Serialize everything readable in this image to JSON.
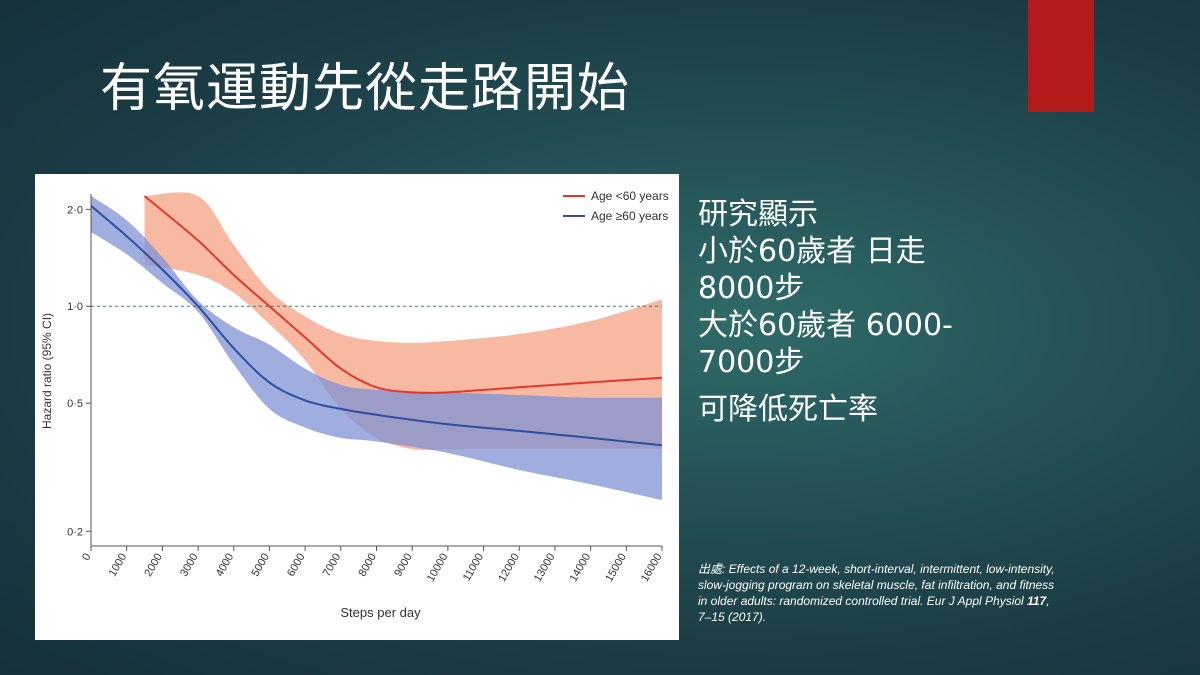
{
  "slide": {
    "title": "有氧運動先從走路開始",
    "accent_color": "#b31b1b"
  },
  "findings": {
    "lines": [
      "研究顯示",
      "小於60歲者 日走",
      "8000步",
      "大於60歲者 6000-",
      "7000步"
    ],
    "conclusion": "可降低死亡率"
  },
  "citation": {
    "prefix": "出處:",
    "text_before": " Effects of a 12-week, short-interval, intermittent, low-intensity, slow-jogging program on skeletal muscle, fat infiltration, and fitness in older adults: randomized controlled trial. Eur J Appl Physiol ",
    "volume": "117",
    "text_after": ", 7–15 (2017)."
  },
  "chart_data": {
    "type": "line",
    "xlabel": "Steps per day",
    "ylabel": "Hazard ratio (95% CI)",
    "y_scale": "log",
    "xlim": [
      0,
      16000
    ],
    "ylim": [
      0.18,
      2.2
    ],
    "x_ticks": [
      0,
      1000,
      2000,
      3000,
      4000,
      5000,
      6000,
      7000,
      8000,
      9000,
      10000,
      11000,
      12000,
      13000,
      14000,
      15000,
      16000
    ],
    "x_tick_labels": [
      "0",
      "1000",
      "2000",
      "3000",
      "4000",
      "5000",
      "6000",
      "7000",
      "8000",
      "9000",
      "10000",
      "11000",
      "12000",
      "13000",
      "14000",
      "15000",
      "16000"
    ],
    "y_ticks": [
      0.2,
      0.5,
      1.0,
      2.0
    ],
    "y_tick_labels": [
      "0·2",
      "0·5",
      "1·0",
      "2·0"
    ],
    "reference_line": 1.0,
    "legend_position": "top-right",
    "series": [
      {
        "name": "Age <60 years",
        "color": "#e03a2a",
        "band_color": "#f5a184",
        "x": [
          1500,
          3000,
          4000,
          5000,
          6000,
          7000,
          8000,
          9000,
          10000,
          12000,
          14000,
          16000
        ],
        "y": [
          2.2,
          1.6,
          1.25,
          1.0,
          0.8,
          0.64,
          0.56,
          0.54,
          0.54,
          0.56,
          0.58,
          0.6
        ],
        "lower": [
          1.35,
          1.25,
          1.1,
          0.88,
          0.68,
          0.48,
          0.39,
          0.36,
          0.36,
          0.36,
          0.36,
          0.36
        ],
        "upper": [
          2.2,
          2.2,
          1.55,
          1.12,
          0.93,
          0.82,
          0.78,
          0.77,
          0.78,
          0.82,
          0.9,
          1.05
        ]
      },
      {
        "name": "Age ≥60 years",
        "color": "#2e4f9e",
        "band_color": "#7f92d4",
        "x": [
          0,
          1000,
          2000,
          3000,
          4000,
          5000,
          6000,
          7000,
          8000,
          10000,
          12000,
          14000,
          16000
        ],
        "y": [
          2.05,
          1.65,
          1.3,
          1.0,
          0.74,
          0.58,
          0.51,
          0.48,
          0.46,
          0.43,
          0.41,
          0.39,
          0.37
        ],
        "lower": [
          1.7,
          1.45,
          1.18,
          0.96,
          0.66,
          0.48,
          0.42,
          0.39,
          0.38,
          0.35,
          0.31,
          0.28,
          0.25
        ],
        "upper": [
          2.2,
          1.85,
          1.42,
          1.04,
          0.86,
          0.76,
          0.64,
          0.57,
          0.55,
          0.54,
          0.53,
          0.52,
          0.52
        ]
      }
    ]
  }
}
